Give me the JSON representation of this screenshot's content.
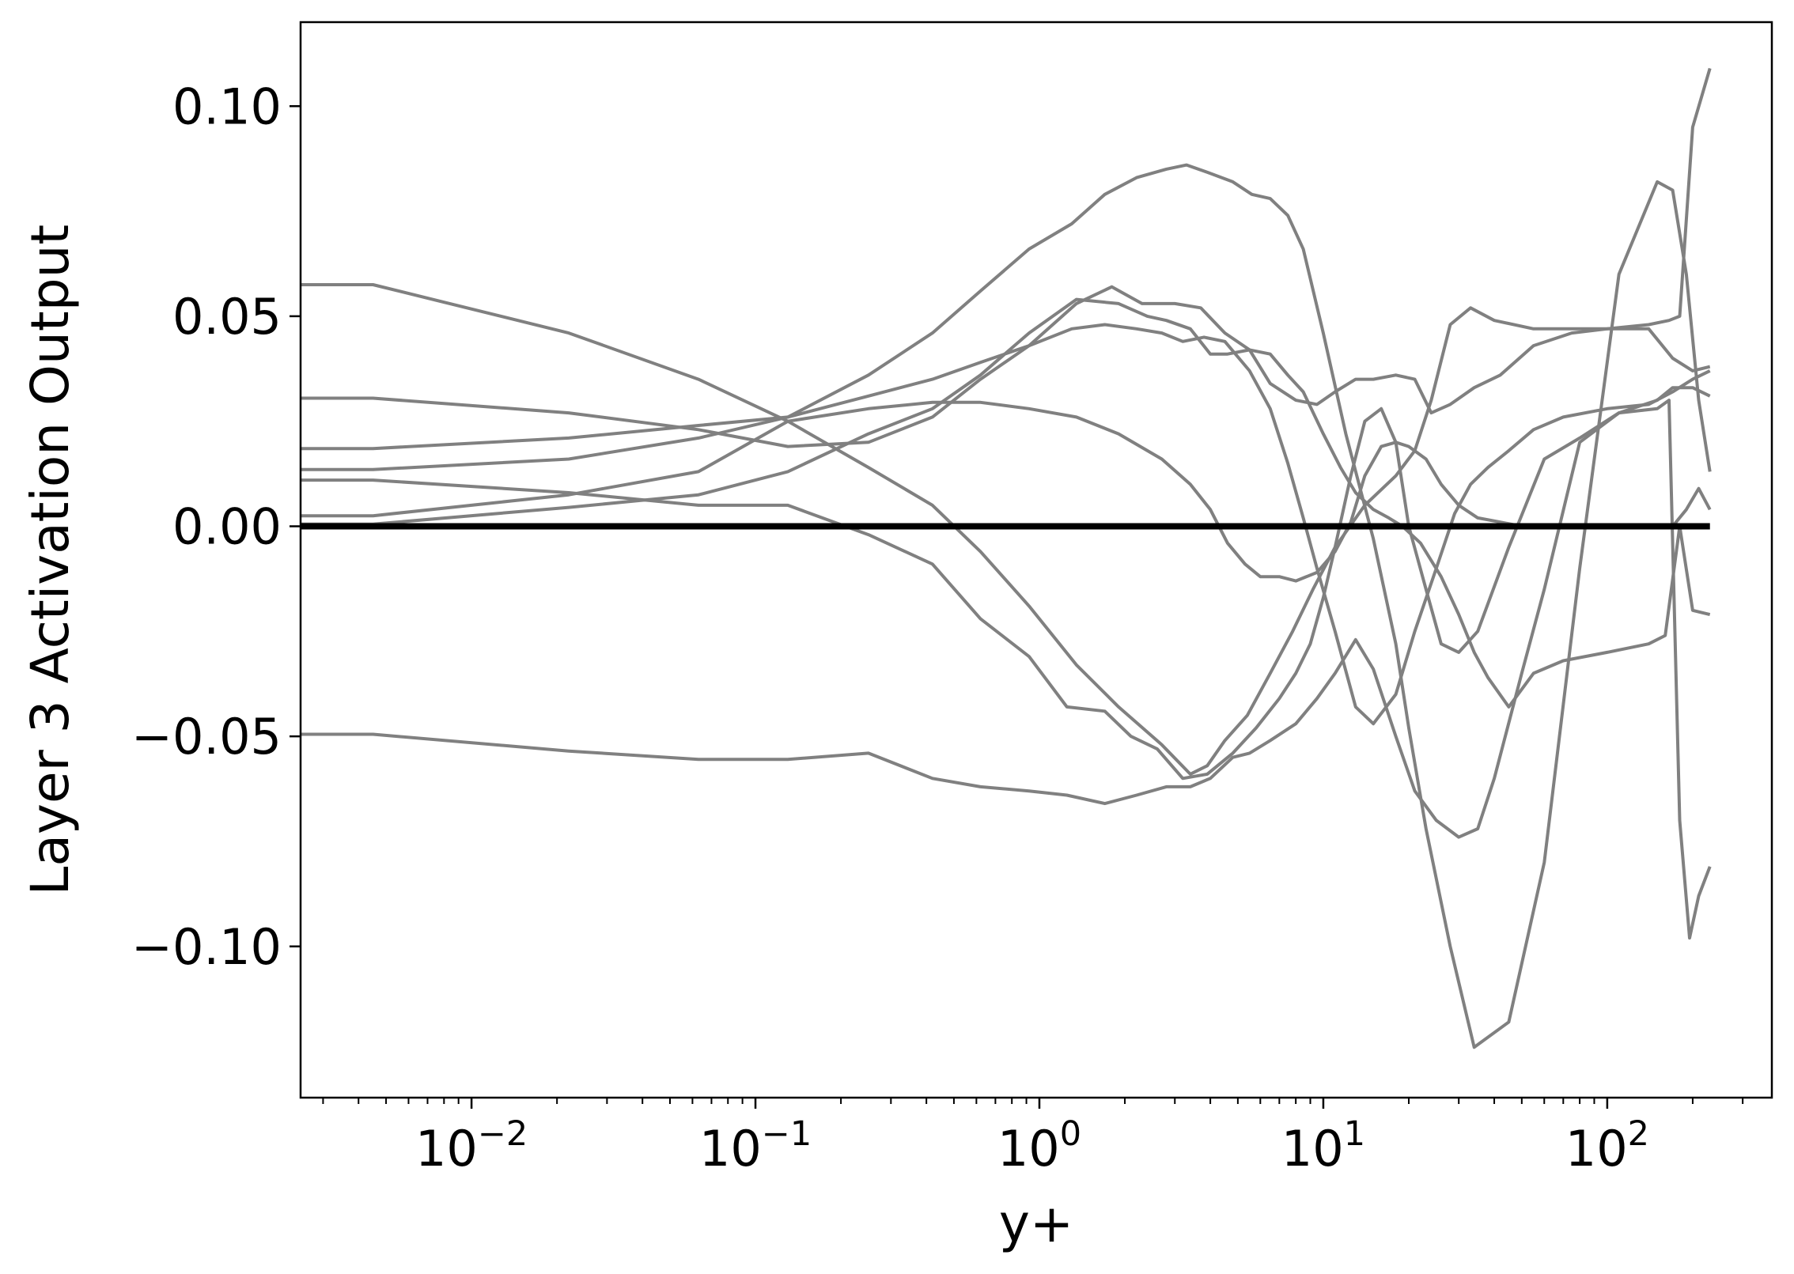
{
  "chart_data": {
    "type": "line",
    "title": "",
    "xlabel": "y+",
    "ylabel": "Layer 3 Activation Output",
    "xscale": "log",
    "xlim": [
      0.0025,
      380
    ],
    "ylim": [
      -0.136,
      0.12
    ],
    "grid": false,
    "legend": "none",
    "x_ticks": [
      {
        "value": 0.01,
        "base": "10",
        "exp": "−2"
      },
      {
        "value": 0.1,
        "base": "10",
        "exp": "−1"
      },
      {
        "value": 1,
        "base": "10",
        "exp": "0"
      },
      {
        "value": 10,
        "base": "10",
        "exp": "1"
      },
      {
        "value": 100,
        "base": "10",
        "exp": "2"
      }
    ],
    "y_ticks": [
      {
        "value": 0.1,
        "label": "0.10"
      },
      {
        "value": 0.05,
        "label": "0.05"
      },
      {
        "value": 0.0,
        "label": "0.00"
      },
      {
        "value": -0.05,
        "label": "−0.05"
      },
      {
        "value": -0.1,
        "label": "−0.10"
      }
    ],
    "series_color": "#808080",
    "zero_line": {
      "color": "#000000",
      "x": [
        0.0025,
        230
      ],
      "y": 0.0
    },
    "series": [
      {
        "x": [
          0.0025,
          0.0045,
          0.022,
          0.063,
          0.13,
          0.25,
          0.42,
          0.62,
          0.92,
          1.35,
          1.9,
          2.7,
          3.4,
          3.9,
          4.5,
          5.4,
          6.5,
          7.8,
          9.2,
          11,
          14,
          18,
          21,
          24,
          28,
          33,
          40,
          55,
          75,
          100,
          140,
          165,
          180,
          200,
          230
        ],
        "y": [
          0.0575,
          0.0575,
          0.046,
          0.035,
          0.025,
          0.014,
          0.005,
          -0.006,
          -0.019,
          -0.033,
          -0.043,
          -0.052,
          -0.059,
          -0.057,
          -0.051,
          -0.045,
          -0.035,
          -0.025,
          -0.015,
          -0.005,
          0.005,
          0.012,
          0.018,
          0.03,
          0.048,
          0.052,
          0.049,
          0.047,
          0.047,
          0.047,
          0.048,
          0.049,
          0.05,
          0.095,
          0.109
        ]
      },
      {
        "x": [
          0.0025,
          0.0045,
          0.022,
          0.063,
          0.13,
          0.25,
          0.42,
          0.62,
          0.92,
          1.3,
          1.7,
          2.2,
          2.8,
          3.3,
          4.0,
          4.8,
          5.6,
          6.5,
          7.5,
          8.5,
          10,
          12,
          15,
          18,
          20,
          23,
          28,
          34,
          45,
          60,
          80,
          110,
          150,
          170,
          190,
          210,
          230
        ],
        "y": [
          0.0135,
          0.0135,
          0.016,
          0.021,
          0.026,
          0.036,
          0.046,
          0.056,
          0.066,
          0.072,
          0.079,
          0.083,
          0.085,
          0.086,
          0.084,
          0.082,
          0.079,
          0.078,
          0.074,
          0.066,
          0.046,
          0.022,
          -0.003,
          -0.028,
          -0.048,
          -0.072,
          -0.1,
          -0.124,
          -0.118,
          -0.08,
          -0.01,
          0.06,
          0.082,
          0.08,
          0.06,
          0.03,
          0.013
        ]
      },
      {
        "x": [
          0.0025,
          0.0045,
          0.022,
          0.063,
          0.13,
          0.25,
          0.42,
          0.62,
          0.92,
          1.35,
          1.8,
          2.3,
          3.0,
          3.7,
          4.5,
          5.5,
          6.5,
          8.0,
          9.5,
          11,
          13,
          15,
          18,
          21,
          24,
          28,
          34,
          42,
          55,
          75,
          100,
          140,
          170,
          200,
          230
        ],
        "y": [
          0.0305,
          0.0305,
          0.027,
          0.023,
          0.019,
          0.02,
          0.026,
          0.035,
          0.043,
          0.053,
          0.057,
          0.053,
          0.053,
          0.052,
          0.046,
          0.042,
          0.034,
          0.03,
          0.029,
          0.032,
          0.035,
          0.035,
          0.036,
          0.035,
          0.027,
          0.029,
          0.033,
          0.036,
          0.043,
          0.046,
          0.047,
          0.047,
          0.04,
          0.037,
          0.038
        ]
      },
      {
        "x": [
          0.0025,
          0.0045,
          0.022,
          0.063,
          0.13,
          0.25,
          0.42,
          0.62,
          0.92,
          1.3,
          1.7,
          2.2,
          2.7,
          3.2,
          3.8,
          4.5,
          5.5,
          6.5,
          7.5,
          8.5,
          9.5,
          11,
          13,
          15,
          18,
          21,
          25,
          29,
          33,
          38,
          45,
          55,
          70,
          100,
          140,
          170,
          200,
          230
        ],
        "y": [
          0.0185,
          0.0185,
          0.021,
          0.024,
          0.026,
          0.031,
          0.035,
          0.039,
          0.043,
          0.047,
          0.048,
          0.047,
          0.046,
          0.044,
          0.045,
          0.044,
          0.037,
          0.028,
          0.015,
          0.002,
          -0.01,
          -0.025,
          -0.043,
          -0.047,
          -0.04,
          -0.025,
          -0.01,
          0.003,
          0.01,
          0.014,
          0.018,
          0.023,
          0.026,
          0.028,
          0.029,
          0.032,
          0.035,
          0.037
        ]
      },
      {
        "x": [
          0.0025,
          0.0045,
          0.022,
          0.063,
          0.13,
          0.25,
          0.42,
          0.62,
          0.92,
          1.35,
          1.9,
          2.7,
          3.4,
          4.0,
          4.6,
          5.3,
          6.0,
          7.0,
          8.0,
          9.5,
          11,
          12.5,
          14,
          16,
          18,
          20,
          23,
          26,
          30,
          35,
          42,
          50,
          60,
          80,
          110,
          150,
          170,
          190,
          210,
          230
        ],
        "y": [
          0.0025,
          0.0025,
          0.0075,
          0.013,
          0.025,
          0.028,
          0.0295,
          0.0295,
          0.028,
          0.026,
          0.022,
          0.016,
          0.01,
          0.004,
          -0.004,
          -0.009,
          -0.012,
          -0.012,
          -0.013,
          -0.011,
          -0.006,
          0.001,
          0.012,
          0.019,
          0.02,
          0.019,
          0.016,
          0.01,
          0.005,
          0.002,
          0.001,
          0.0,
          0.0,
          0.0,
          0.0,
          0.0,
          0.0,
          0.004,
          0.009,
          0.004
        ]
      },
      {
        "x": [
          0.0025,
          0.0045,
          0.022,
          0.063,
          0.13,
          0.25,
          0.42,
          0.62,
          0.92,
          1.25,
          1.7,
          2.1,
          2.6,
          3.2,
          3.9,
          4.8,
          5.8,
          7.0,
          8.0,
          9.0,
          10,
          11,
          12.5,
          14,
          16,
          18,
          20,
          23,
          26,
          30,
          35,
          45,
          60,
          80,
          110,
          150,
          170,
          200,
          230
        ],
        "y": [
          0.011,
          0.011,
          0.008,
          0.005,
          0.005,
          -0.002,
          -0.009,
          -0.022,
          -0.031,
          -0.043,
          -0.044,
          -0.05,
          -0.053,
          -0.06,
          -0.059,
          -0.054,
          -0.048,
          -0.041,
          -0.035,
          -0.028,
          -0.017,
          -0.005,
          0.012,
          0.025,
          0.028,
          0.02,
          0.0,
          -0.015,
          -0.028,
          -0.03,
          -0.025,
          -0.005,
          0.016,
          0.021,
          0.027,
          0.03,
          0.033,
          0.033,
          0.031
        ]
      },
      {
        "x": [
          0.0025,
          0.0045,
          0.022,
          0.063,
          0.13,
          0.25,
          0.42,
          0.62,
          0.92,
          1.35,
          1.9,
          2.4,
          2.8,
          3.4,
          4.0,
          4.6,
          5.5,
          6.5,
          7.5,
          8.5,
          10,
          11.5,
          13,
          15,
          17,
          19,
          22,
          26,
          30,
          34,
          38,
          45,
          55,
          70,
          100,
          140,
          160,
          180,
          200,
          230
        ],
        "y": [
          0.0005,
          0.0005,
          0.0045,
          0.0075,
          0.013,
          0.022,
          0.028,
          0.036,
          0.046,
          0.054,
          0.053,
          0.05,
          0.049,
          0.047,
          0.041,
          0.041,
          0.042,
          0.041,
          0.036,
          0.032,
          0.022,
          0.014,
          0.008,
          0.004,
          0.002,
          0.0,
          -0.004,
          -0.012,
          -0.021,
          -0.03,
          -0.036,
          -0.043,
          -0.035,
          -0.032,
          -0.03,
          -0.028,
          -0.026,
          0.0,
          -0.02,
          -0.021
        ]
      },
      {
        "x": [
          0.0025,
          0.0045,
          0.022,
          0.063,
          0.13,
          0.25,
          0.42,
          0.62,
          0.92,
          1.25,
          1.7,
          2.2,
          2.8,
          3.4,
          4.0,
          4.8,
          5.5,
          6.5,
          8.0,
          9.5,
          11,
          13,
          15,
          18,
          21,
          25,
          30,
          35,
          40,
          50,
          60,
          80,
          110,
          150,
          165,
          180,
          195,
          210,
          230
        ],
        "y": [
          -0.0495,
          -0.0495,
          -0.0535,
          -0.0555,
          -0.0555,
          -0.054,
          -0.06,
          -0.062,
          -0.063,
          -0.064,
          -0.066,
          -0.064,
          -0.062,
          -0.062,
          -0.06,
          -0.055,
          -0.054,
          -0.051,
          -0.047,
          -0.041,
          -0.035,
          -0.027,
          -0.034,
          -0.05,
          -0.063,
          -0.07,
          -0.074,
          -0.072,
          -0.06,
          -0.035,
          -0.015,
          0.02,
          0.027,
          0.028,
          0.03,
          -0.07,
          -0.098,
          -0.088,
          -0.081
        ]
      }
    ]
  }
}
